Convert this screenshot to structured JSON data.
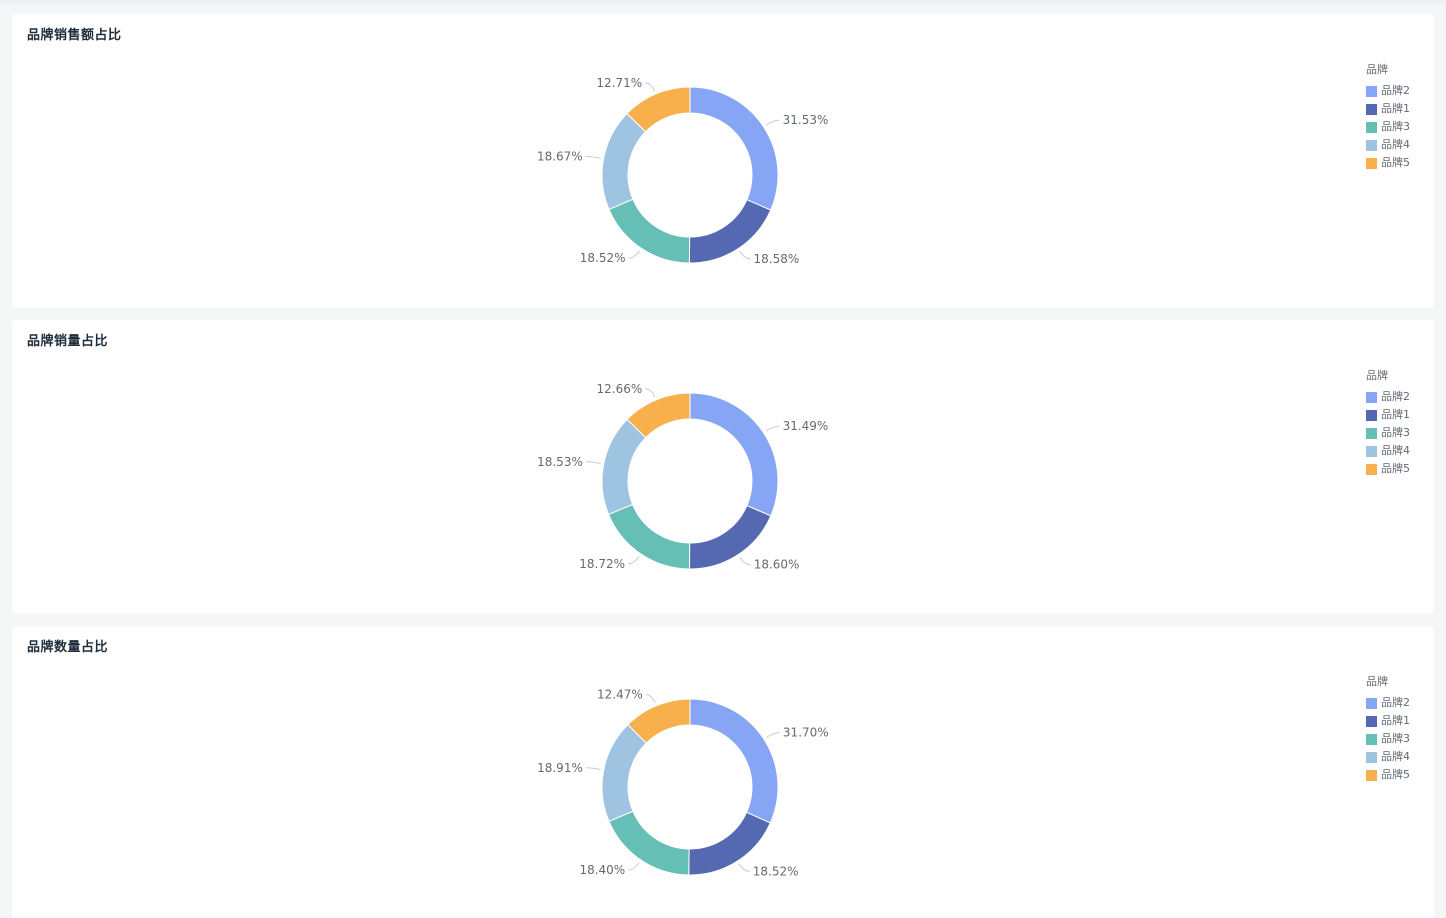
{
  "legend_title": "品牌",
  "colors": {
    "品牌2": "#86a5f5",
    "品牌1": "#5469b1",
    "品牌3": "#65bfb5",
    "品牌4": "#9fc4e1",
    "品牌5": "#f8b04d"
  },
  "chart_data": [
    {
      "type": "pie",
      "title": "品牌销售额占比",
      "legend_title": "品牌",
      "legend_position": "top-right",
      "categories": [
        "品牌2",
        "品牌1",
        "品牌3",
        "品牌4",
        "品牌5"
      ],
      "values": [
        31.53,
        18.58,
        18.52,
        18.67,
        12.71
      ],
      "labels": [
        "31.53%",
        "18.58%",
        "18.52%",
        "18.67%",
        "12.71%"
      ]
    },
    {
      "type": "pie",
      "title": "品牌销量占比",
      "legend_title": "品牌",
      "legend_position": "top-right",
      "categories": [
        "品牌2",
        "品牌1",
        "品牌3",
        "品牌4",
        "品牌5"
      ],
      "values": [
        31.49,
        18.6,
        18.72,
        18.53,
        12.66
      ],
      "labels": [
        "31.49%",
        "18.60%",
        "18.72%",
        "18.53%",
        "12.66%"
      ]
    },
    {
      "type": "pie",
      "title": "品牌数量占比",
      "legend_title": "品牌",
      "legend_position": "top-right",
      "categories": [
        "品牌2",
        "品牌1",
        "品牌3",
        "品牌4",
        "品牌5"
      ],
      "values": [
        31.7,
        18.52,
        18.4,
        18.91,
        12.47
      ],
      "labels": [
        "31.70%",
        "18.52%",
        "18.40%",
        "18.91%",
        "12.47%"
      ]
    }
  ]
}
